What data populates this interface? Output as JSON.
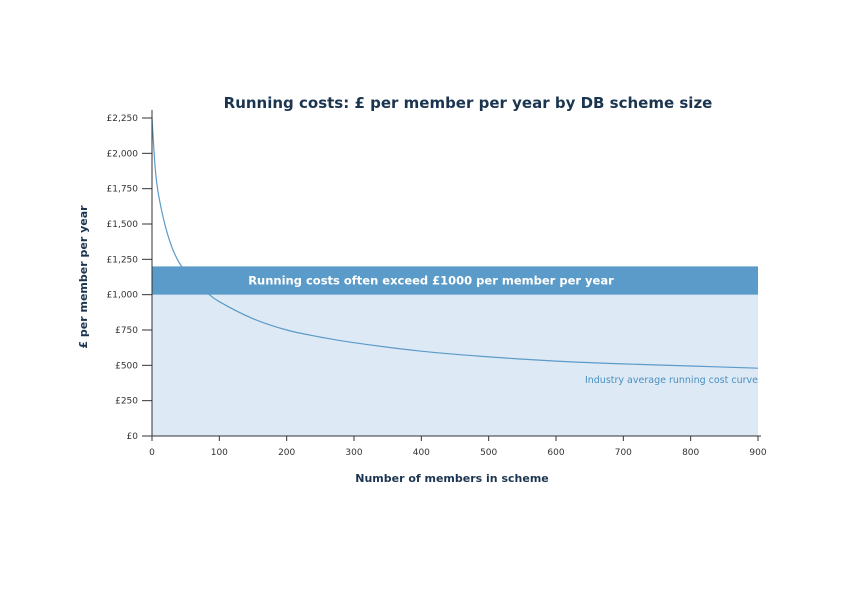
{
  "chart_data": {
    "type": "line",
    "title": "Running costs:  £ per member per year by DB scheme size",
    "xlabel": "Number of members in scheme",
    "ylabel": "£ per member per year",
    "xlim": [
      0,
      900
    ],
    "ylim": [
      0,
      2250
    ],
    "x_ticks": [
      0,
      100,
      200,
      300,
      400,
      500,
      600,
      700,
      800,
      900
    ],
    "x_tick_labels": [
      "0",
      "100",
      "200",
      "300",
      "400",
      "500",
      "600",
      "700",
      "800",
      "900"
    ],
    "y_ticks": [
      0,
      250,
      500,
      750,
      1000,
      1250,
      1500,
      1750,
      2000,
      2250
    ],
    "y_tick_labels": [
      "£0",
      "£250",
      "£500",
      "£750",
      "£1,000",
      "£1,250",
      "£1,500",
      "£1,750",
      "£2,000",
      "£2,250"
    ],
    "grid": false,
    "shaded_area": {
      "y_from": 0,
      "y_to": 1000,
      "color": "#dde9f4"
    },
    "band": {
      "y_from": 1000,
      "y_to": 1200,
      "color": "#5b9bc9",
      "label": "Running costs often exceed £1000 per member per year"
    },
    "series": [
      {
        "name": "Industry average running cost curve",
        "color": "#5b9bc9",
        "x": [
          0,
          5,
          10,
          20,
          30,
          40,
          50,
          60,
          80,
          100,
          150,
          200,
          250,
          300,
          400,
          500,
          600,
          700,
          800,
          900
        ],
        "y": [
          2250,
          1880,
          1700,
          1480,
          1330,
          1230,
          1160,
          1100,
          1020,
          950,
          830,
          750,
          700,
          660,
          600,
          560,
          530,
          510,
          495,
          480
        ]
      }
    ]
  }
}
